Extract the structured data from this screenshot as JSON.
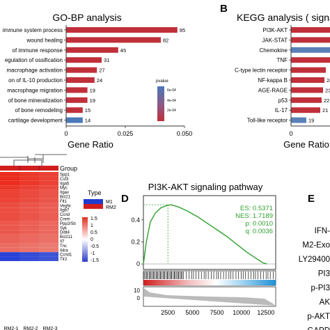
{
  "panels": {
    "B": "B",
    "D": "D",
    "E": "E"
  },
  "chart_data": [
    {
      "id": "go_bp",
      "type": "bar",
      "orientation": "horizontal",
      "title": "GO-BP analysis",
      "xlabel": "Gene Ratio",
      "xticks": [
        "0",
        "0.025",
        "0.050"
      ],
      "xlim": [
        0,
        0.05
      ],
      "legend_title": "pvalue",
      "legend_ticks": [
        "6e-04",
        "4e-04",
        "2e-04"
      ],
      "colors": {
        "low": "#c0303a",
        "high": "#4a78b8"
      },
      "categories": [
        "immune system process",
        "wound healing",
        "of immune response",
        "egulation of ossification",
        "macrophage activation",
        "on of IL-10 production",
        "macrophage migration",
        "of bone mineralization",
        "of bone remodeling",
        "cartilage development"
      ],
      "values": [
        0.047,
        0.04,
        0.022,
        0.015,
        0.013,
        0.012,
        0.009,
        0.009,
        0.007,
        0.007
      ],
      "labels": [
        "95",
        "82",
        "45",
        "31",
        "27",
        "24",
        "19",
        "19",
        "15",
        "14"
      ],
      "pvalue_color": [
        "red",
        "red",
        "red",
        "red",
        "red",
        "red",
        "red",
        "red",
        "red",
        "blue"
      ]
    },
    {
      "id": "kegg",
      "type": "bar",
      "orientation": "horizontal",
      "title": "KEGG analysis ( signal",
      "xlabel": "Gene Ratio",
      "xticks": [
        "0"
      ],
      "categories": [
        "PI3K-AKT",
        "JAK-STAT",
        "Chemokine",
        "TNF",
        "C-type lectin receptor",
        "NF-kappa B",
        "AGE-RAGE",
        "p53",
        "IL-17",
        "Toll-like receptor"
      ],
      "labels": [
        "",
        "",
        "",
        "",
        "",
        "24",
        "23",
        "22",
        "21",
        "19"
      ],
      "pvalue_color": [
        "red",
        "red",
        "blue",
        "red",
        "red",
        "red",
        "red",
        "red",
        "red",
        "blue"
      ]
    },
    {
      "id": "gsea",
      "type": "line",
      "title": "PI3K-AKT signaling pathway",
      "yticks": [
        "0.4",
        "0.2",
        "0"
      ],
      "xticks": [
        "2500",
        "5000",
        "7500",
        "10000",
        "12500"
      ],
      "rank_yticks": [
        "10",
        "0"
      ],
      "stats": [
        "ES: 0.5371",
        "NES: 1.7189",
        "p: 0.0010",
        "q: 0.0036"
      ],
      "x": [
        0,
        300,
        700,
        1200,
        1800,
        2400,
        2800,
        3500,
        4500,
        5500,
        6500,
        7500,
        8500,
        9500,
        10500,
        11500,
        12200,
        12600
      ],
      "y": [
        0.0,
        0.2,
        0.38,
        0.46,
        0.51,
        0.53,
        0.537,
        0.52,
        0.48,
        0.43,
        0.37,
        0.31,
        0.25,
        0.18,
        0.11,
        0.05,
        0.01,
        0.0
      ],
      "peak_x": 2500,
      "xlim": [
        0,
        13500
      ],
      "ylim": [
        -0.05,
        0.62
      ]
    }
  ],
  "heatmap": {
    "legend_title": "Group",
    "genes": [
      "Spp1",
      "Csf3",
      "Itga5",
      "Myc",
      "Itgav",
      "Bcl21",
      "Flt1",
      "Vegfa",
      "Itgb7",
      "Ccnd",
      "Crem",
      "Ppp2r5b",
      "Syk",
      "Ddit4",
      "Bcl211",
      "Il7",
      "Tnc",
      "Il4ra",
      "Ccnd1",
      "Tlr2"
    ],
    "samples": [
      "RM2-1",
      "RM2-2",
      "RM2-3"
    ],
    "type_title": "Type",
    "types": [
      "M1",
      "RM2"
    ],
    "type_colors": [
      "#1f3ccf",
      "#d01e1e"
    ],
    "scale_ticks": [
      "1.5",
      "1",
      "0.5",
      "0",
      "-0.5",
      "-1",
      "-1.5"
    ],
    "row_levels": [
      1.0,
      1.0,
      1.0,
      0.95,
      0.9,
      0.9,
      0.9,
      0.85,
      0.85,
      0.85,
      0.85,
      0.8,
      0.8,
      0.8,
      0.75,
      0.75,
      0.7,
      0.7,
      -1.0,
      -1.0
    ]
  },
  "blot_labels": [
    "IFN-",
    "M2-Exo",
    "LY29400",
    "PI3",
    "p-PI3",
    "AK",
    "p-AKT",
    "GAPD"
  ]
}
